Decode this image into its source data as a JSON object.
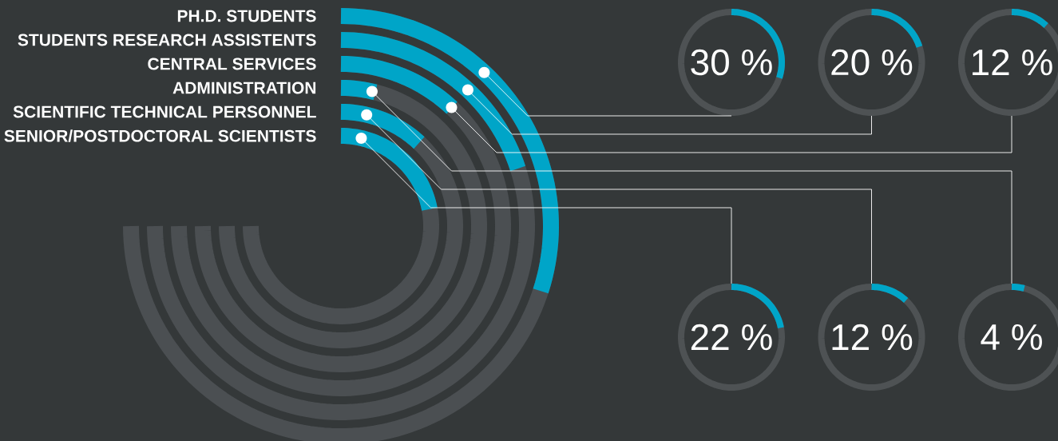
{
  "chart_data": {
    "type": "other",
    "categories": [
      "PH.D. STUDENTS",
      "STUDENTS RESEARCH ASSISTENTS",
      "CENTRAL SERVICES",
      "ADMINISTRATION",
      "SCIENTIFIC TECHNICAL PERSONNEL",
      "SENIOR/POSTDOCTORAL SCIENTISTS"
    ],
    "values": [
      30,
      20,
      12,
      4,
      12,
      22
    ],
    "value_labels": [
      "30 %",
      "20 %",
      "12 %",
      "4 %",
      "12 %",
      "22 %"
    ],
    "color": "#00a5c8"
  }
}
